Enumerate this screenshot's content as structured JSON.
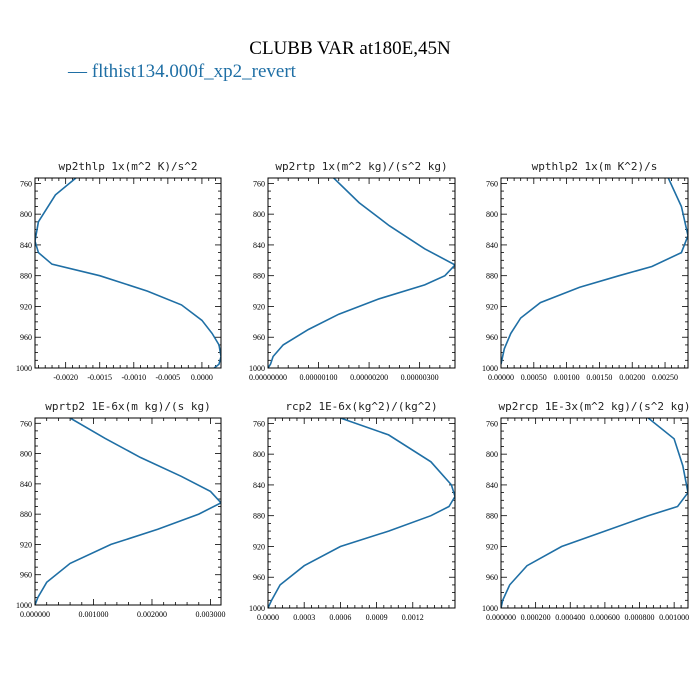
{
  "figure": {
    "title": "CLUBB VAR at180E,45N",
    "legend_label": "— flthist134.000f_xp2_revert",
    "line_color": "#1f6fa5"
  },
  "chart_data": [
    {
      "type": "line",
      "title": "wp2thlp   1x(m^2 K)/s^2",
      "xlim": [
        -0.00245,
        0.00028
      ],
      "ylim": [
        1000,
        753
      ],
      "x_ticks": [
        -0.002,
        -0.0015,
        -0.001,
        -0.0005,
        0.0
      ],
      "x_tick_labels": [
        "-0.0020",
        "-0.0015",
        "-0.0010",
        "-0.0005",
        "0.0000"
      ],
      "y_ticks": [
        760,
        800,
        840,
        880,
        920,
        960,
        1000
      ],
      "y_tick_labels": [
        "760",
        "800",
        "840",
        "880",
        "920",
        "960",
        "1000"
      ],
      "series": [
        {
          "x": [
            -0.00185,
            -0.00215,
            -0.0024,
            -0.00245,
            -0.0024,
            -0.0022,
            -0.0015,
            -0.0008,
            -0.0003,
            0.0,
            0.00015,
            0.00025,
            0.00028,
            0.00025,
            0.00018
          ],
          "y": [
            753,
            775,
            810,
            835,
            850,
            865,
            880,
            900,
            918,
            938,
            955,
            970,
            985,
            995,
            1000
          ]
        }
      ]
    },
    {
      "type": "line",
      "title": "wp2rtp   1x(m^2 kg)/(s^2 kg)",
      "xlim": [
        0.0,
        3.7e-06
      ],
      "ylim": [
        1000,
        753
      ],
      "x_ticks": [
        0.0,
        1e-06,
        2e-06,
        3e-06
      ],
      "x_tick_labels": [
        "0.00000000",
        "0.00000100",
        "0.00000200",
        "0.00000300"
      ],
      "y_ticks": [
        760,
        800,
        840,
        880,
        920,
        960,
        1000
      ],
      "y_tick_labels": [
        "760",
        "800",
        "840",
        "880",
        "920",
        "960",
        "1000"
      ],
      "series": [
        {
          "x": [
            1.3e-06,
            1.8e-06,
            2.4e-06,
            3.1e-06,
            3.7e-06,
            3.5e-06,
            3.1e-06,
            2.2e-06,
            1.4e-06,
            8e-07,
            3e-07,
            1e-07,
            5e-08,
            0.0
          ],
          "y": [
            753,
            785,
            815,
            845,
            866,
            880,
            892,
            910,
            930,
            950,
            970,
            985,
            995,
            1000
          ]
        }
      ]
    },
    {
      "type": "line",
      "title": "wpthlp2  1x(m K^2)/s",
      "xlim": [
        0.0,
        0.00285
      ],
      "ylim": [
        1000,
        753
      ],
      "x_ticks": [
        0.0,
        0.0005,
        0.001,
        0.0015,
        0.002,
        0.0025
      ],
      "x_tick_labels": [
        "0.00000",
        "0.00050",
        "0.00100",
        "0.00150",
        "0.00200",
        "0.00250"
      ],
      "y_ticks": [
        760,
        800,
        840,
        880,
        920,
        960,
        1000
      ],
      "y_tick_labels": [
        "760",
        "800",
        "840",
        "880",
        "920",
        "960",
        "1000"
      ],
      "series": [
        {
          "x": [
            0.00255,
            0.00275,
            0.00285,
            0.00275,
            0.0023,
            0.0018,
            0.0012,
            0.0006,
            0.0003,
            0.00015,
            5e-05,
            0.0
          ],
          "y": [
            753,
            790,
            828,
            850,
            868,
            880,
            895,
            915,
            935,
            955,
            975,
            995
          ]
        }
      ]
    },
    {
      "type": "line",
      "title": "wprtp2   1E-6x(m kg)/(s kg)",
      "xlim": [
        0.0,
        0.00318
      ],
      "ylim": [
        1000,
        753
      ],
      "x_ticks": [
        0.0,
        0.001,
        0.002,
        0.003
      ],
      "x_tick_labels": [
        "0.000000",
        "0.001000",
        "0.002000",
        "0.003000"
      ],
      "y_ticks": [
        760,
        800,
        840,
        880,
        920,
        960,
        1000
      ],
      "y_tick_labels": [
        "760",
        "800",
        "840",
        "880",
        "920",
        "960",
        "1000"
      ],
      "series": [
        {
          "x": [
            0.0006,
            0.0012,
            0.0018,
            0.0025,
            0.003,
            0.00318,
            0.0028,
            0.0021,
            0.0013,
            0.0006,
            0.0002,
            5e-05,
            0.0
          ],
          "y": [
            753,
            780,
            805,
            830,
            850,
            865,
            880,
            900,
            920,
            945,
            970,
            990,
            1000
          ]
        }
      ]
    },
    {
      "type": "line",
      "title": "rcp2   1E-6x(kg^2)/(kg^2)",
      "xlim": [
        0.0,
        0.00155
      ],
      "ylim": [
        1000,
        753
      ],
      "x_ticks": [
        0.0,
        0.0003,
        0.0006,
        0.0009,
        0.0012
      ],
      "x_tick_labels": [
        "0.0000",
        "0.0003",
        "0.0006",
        "0.0009",
        "0.0012"
      ],
      "y_ticks": [
        760,
        800,
        840,
        880,
        920,
        960,
        1000
      ],
      "y_tick_labels": [
        "760",
        "800",
        "840",
        "880",
        "920",
        "960",
        "1000"
      ],
      "series": [
        {
          "x": [
            0.0006,
            0.001,
            0.00135,
            0.00152,
            0.00155,
            0.0015,
            0.00135,
            0.001,
            0.0006,
            0.0003,
            0.0001,
            3e-05,
            0.0
          ],
          "y": [
            753,
            775,
            810,
            840,
            855,
            868,
            880,
            900,
            920,
            945,
            970,
            990,
            1000
          ]
        }
      ]
    },
    {
      "type": "line",
      "title": "wp2rcp   1E-3x(m^2 kg)/(s^2 kg)",
      "xlim": [
        0.0,
        0.00108
      ],
      "ylim": [
        1000,
        753
      ],
      "x_ticks": [
        0.0,
        0.0002,
        0.0004,
        0.0006,
        0.0008,
        0.001
      ],
      "x_tick_labels": [
        "0.000000",
        "0.000200",
        "0.000400",
        "0.000600",
        "0.000800",
        "0.001000"
      ],
      "y_ticks": [
        760,
        800,
        840,
        880,
        920,
        960,
        1000
      ],
      "y_tick_labels": [
        "760",
        "800",
        "840",
        "880",
        "920",
        "960",
        "1000"
      ],
      "series": [
        {
          "x": [
            0.00085,
            0.001,
            0.00105,
            0.00108,
            0.00102,
            0.00085,
            0.0006,
            0.00035,
            0.00015,
            5e-05,
            1e-05,
            0.0
          ],
          "y": [
            753,
            780,
            815,
            850,
            868,
            880,
            900,
            920,
            945,
            970,
            990,
            1000
          ]
        }
      ]
    }
  ]
}
